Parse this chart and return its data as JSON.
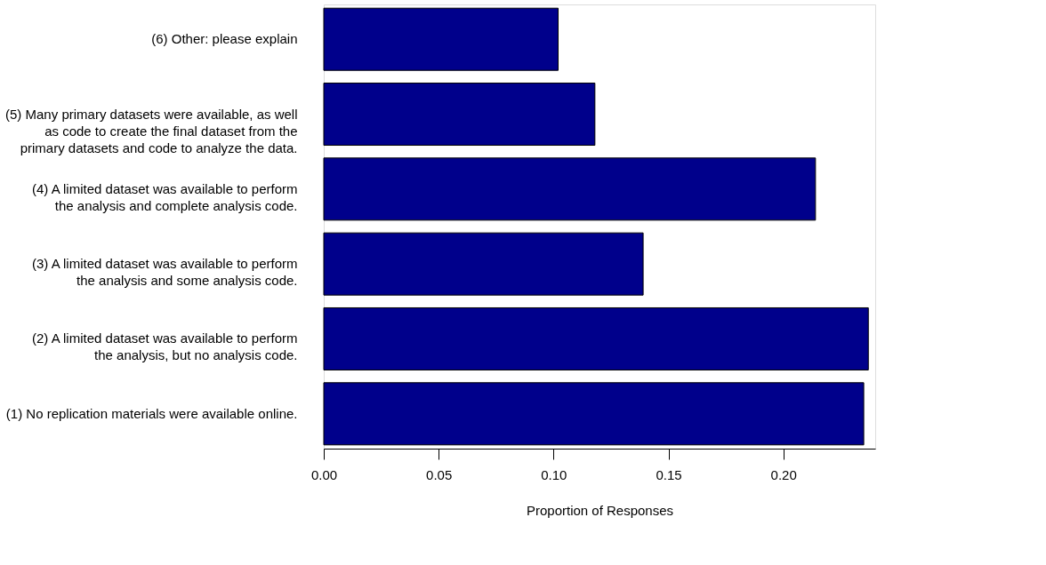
{
  "chart_data": {
    "type": "bar",
    "orientation": "horizontal",
    "xlabel": "Proportion of Responses",
    "categories": [
      "(6) Other: please explain",
      "(5) Many primary datasets were available, as well\nas code to create the final dataset from the\nprimary datasets and code to analyze the data.",
      "(4) A limited dataset was available to perform\nthe analysis and complete analysis code.",
      "(3) A limited dataset was available to perform\nthe analysis and some analysis code.",
      "(2) A limited dataset was available to perform\nthe analysis, but no analysis code.",
      "(1) No replication materials were available online."
    ],
    "values": [
      0.102,
      0.118,
      0.214,
      0.139,
      0.237,
      0.235
    ],
    "color": "#00008b",
    "xlim": [
      0,
      0.24
    ],
    "xticks": [
      {
        "value": 0,
        "label": "0.00"
      },
      {
        "value": 0.05,
        "label": "0.05"
      },
      {
        "value": 0.1,
        "label": "0.10"
      },
      {
        "value": 0.15,
        "label": "0.15"
      },
      {
        "value": 0.2,
        "label": "0.20"
      }
    ],
    "grid": false
  }
}
